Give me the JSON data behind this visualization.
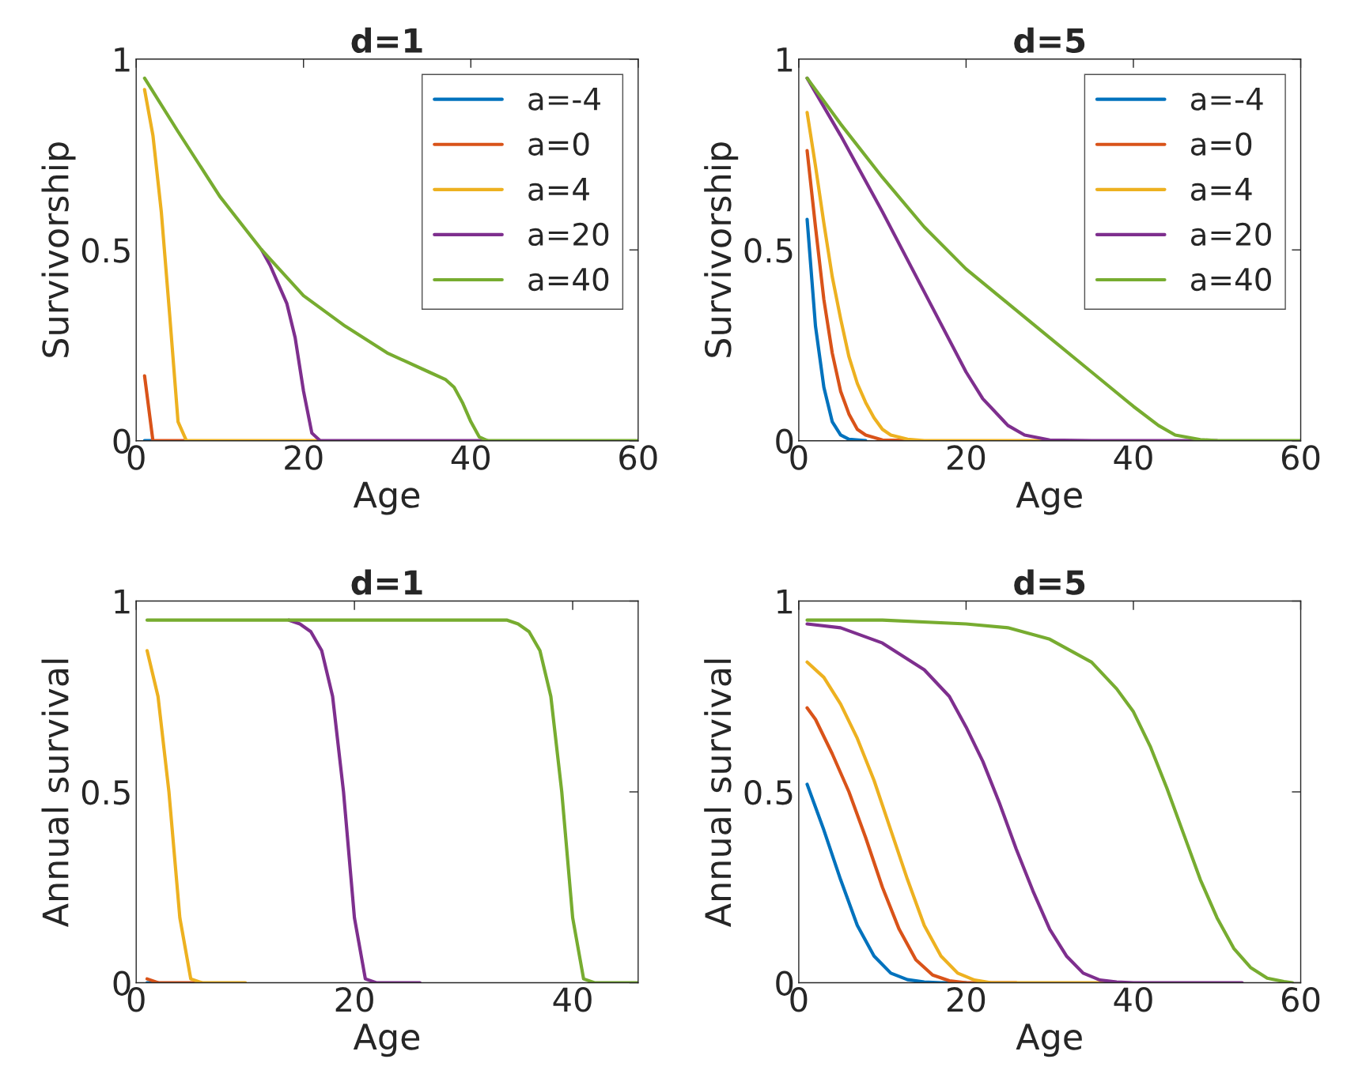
{
  "chart_data": [
    {
      "type": "line",
      "title": "d=1",
      "xlabel": "Age",
      "ylabel": "Survivorship",
      "xlim": [
        0,
        60
      ],
      "ylim": [
        0,
        1
      ],
      "xticks": [
        0,
        20,
        40,
        60
      ],
      "yticks": [
        0,
        0.5,
        1
      ],
      "grid": false,
      "legend": "top right",
      "line_style": "solid",
      "marker": "none",
      "series": [
        {
          "name": "a=-4",
          "color": "#0072bd",
          "x": [
            1,
            2
          ],
          "values": [
            0,
            0
          ]
        },
        {
          "name": "a=0",
          "color": "#d95319",
          "x": [
            1,
            2,
            6
          ],
          "values": [
            0.17,
            0,
            0
          ]
        },
        {
          "name": "a=4",
          "color": "#edb120",
          "x": [
            1,
            2,
            3,
            4,
            5,
            6,
            22
          ],
          "values": [
            0.92,
            0.8,
            0.6,
            0.33,
            0.05,
            0,
            0
          ]
        },
        {
          "name": "a=20",
          "color": "#7e2f8e",
          "x": [
            15,
            16,
            17,
            18,
            19,
            20,
            21,
            22,
            42
          ],
          "values": [
            0.5,
            0.46,
            0.41,
            0.36,
            0.27,
            0.13,
            0.02,
            0,
            0
          ]
        },
        {
          "name": "a=40",
          "color": "#77ac30",
          "x": [
            1,
            5,
            10,
            15,
            20,
            25,
            30,
            35,
            37,
            38,
            39,
            40,
            41,
            42,
            60
          ],
          "values": [
            0.95,
            0.81,
            0.64,
            0.5,
            0.38,
            0.3,
            0.23,
            0.18,
            0.16,
            0.14,
            0.1,
            0.05,
            0.01,
            0,
            0
          ]
        }
      ]
    },
    {
      "type": "line",
      "title": "d=5",
      "xlabel": "Age",
      "ylabel": "Survivorship",
      "xlim": [
        0,
        60
      ],
      "ylim": [
        0,
        1
      ],
      "xticks": [
        0,
        20,
        40,
        60
      ],
      "yticks": [
        0,
        0.5,
        1
      ],
      "grid": false,
      "legend": "top right",
      "line_style": "solid",
      "marker": "none",
      "series": [
        {
          "name": "a=-4",
          "color": "#0072bd",
          "x": [
            1,
            2,
            3,
            4,
            5,
            6,
            8
          ],
          "values": [
            0.58,
            0.3,
            0.14,
            0.05,
            0.015,
            0.004,
            0
          ]
        },
        {
          "name": "a=0",
          "color": "#d95319",
          "x": [
            1,
            2,
            3,
            4,
            5,
            6,
            7,
            8,
            10,
            14
          ],
          "values": [
            0.76,
            0.56,
            0.37,
            0.23,
            0.13,
            0.07,
            0.03,
            0.015,
            0.002,
            0
          ]
        },
        {
          "name": "a=4",
          "color": "#edb120",
          "x": [
            1,
            2,
            3,
            4,
            5,
            6,
            7,
            8,
            9,
            10,
            11,
            13,
            15,
            30
          ],
          "values": [
            0.86,
            0.72,
            0.57,
            0.43,
            0.32,
            0.22,
            0.15,
            0.1,
            0.06,
            0.03,
            0.015,
            0.004,
            0,
            0
          ]
        },
        {
          "name": "a=20",
          "color": "#7e2f8e",
          "x": [
            1,
            5,
            10,
            15,
            20,
            22,
            25,
            27,
            30,
            35,
            50
          ],
          "values": [
            0.95,
            0.8,
            0.6,
            0.39,
            0.18,
            0.11,
            0.04,
            0.015,
            0.002,
            0,
            0
          ]
        },
        {
          "name": "a=40",
          "color": "#77ac30",
          "x": [
            1,
            5,
            10,
            15,
            20,
            25,
            30,
            35,
            40,
            43,
            45,
            48,
            50,
            60
          ],
          "values": [
            0.95,
            0.83,
            0.69,
            0.56,
            0.45,
            0.36,
            0.27,
            0.18,
            0.09,
            0.04,
            0.015,
            0.003,
            0,
            0
          ]
        }
      ]
    },
    {
      "type": "line",
      "title": "d=1",
      "xlabel": "Age",
      "ylabel": "Annual survival",
      "xlim": [
        0,
        46
      ],
      "ylim": [
        0,
        1
      ],
      "xticks": [
        0,
        20,
        40
      ],
      "yticks": [
        0,
        0.5,
        1
      ],
      "grid": false,
      "line_style": "solid",
      "marker": "none",
      "series": [
        {
          "color": "#0072bd",
          "x": [
            1,
            2
          ],
          "values": [
            0,
            0
          ]
        },
        {
          "color": "#d95319",
          "x": [
            1,
            2,
            6
          ],
          "values": [
            0.01,
            0,
            0
          ]
        },
        {
          "color": "#edb120",
          "x": [
            1,
            2,
            3,
            4,
            5,
            6,
            10
          ],
          "values": [
            0.87,
            0.75,
            0.5,
            0.17,
            0.01,
            0,
            0
          ]
        },
        {
          "color": "#7e2f8e",
          "x": [
            14,
            15,
            16,
            17,
            18,
            19,
            20,
            21,
            22,
            26
          ],
          "values": [
            0.95,
            0.94,
            0.92,
            0.87,
            0.75,
            0.5,
            0.17,
            0.01,
            0,
            0
          ]
        },
        {
          "color": "#77ac30",
          "x": [
            1,
            34,
            35,
            36,
            37,
            38,
            39,
            40,
            41,
            42,
            46
          ],
          "values": [
            0.95,
            0.95,
            0.94,
            0.92,
            0.87,
            0.75,
            0.5,
            0.17,
            0.01,
            0,
            0
          ]
        }
      ]
    },
    {
      "type": "line",
      "title": "d=5",
      "xlabel": "Age",
      "ylabel": "Annual survival",
      "xlim": [
        0,
        60
      ],
      "ylim": [
        0,
        1
      ],
      "xticks": [
        0,
        20,
        40,
        60
      ],
      "yticks": [
        0,
        0.5,
        1
      ],
      "grid": false,
      "line_style": "solid",
      "marker": "none",
      "series": [
        {
          "color": "#0072bd",
          "x": [
            1,
            3,
            5,
            7,
            9,
            11,
            13,
            15,
            17,
            20
          ],
          "values": [
            0.52,
            0.4,
            0.27,
            0.15,
            0.07,
            0.025,
            0.008,
            0.002,
            0,
            0
          ]
        },
        {
          "color": "#d95319",
          "x": [
            1,
            2,
            4,
            6,
            8,
            10,
            12,
            14,
            16,
            18,
            20,
            26
          ],
          "values": [
            0.72,
            0.69,
            0.6,
            0.5,
            0.38,
            0.25,
            0.14,
            0.06,
            0.02,
            0.005,
            0,
            0
          ]
        },
        {
          "color": "#edb120",
          "x": [
            1,
            3,
            5,
            7,
            9,
            11,
            13,
            15,
            17,
            19,
            21,
            23,
            37
          ],
          "values": [
            0.84,
            0.8,
            0.73,
            0.64,
            0.53,
            0.4,
            0.27,
            0.15,
            0.07,
            0.025,
            0.007,
            0,
            0
          ]
        },
        {
          "color": "#7e2f8e",
          "x": [
            1,
            5,
            10,
            15,
            18,
            20,
            22,
            24,
            26,
            28,
            30,
            32,
            34,
            36,
            38,
            40,
            53
          ],
          "values": [
            0.94,
            0.93,
            0.89,
            0.82,
            0.75,
            0.67,
            0.58,
            0.47,
            0.35,
            0.24,
            0.14,
            0.07,
            0.025,
            0.007,
            0.002,
            0,
            0
          ]
        },
        {
          "color": "#77ac30",
          "x": [
            1,
            10,
            20,
            25,
            30,
            35,
            38,
            40,
            42,
            44,
            46,
            48,
            50,
            52,
            54,
            56,
            58,
            59
          ],
          "values": [
            0.95,
            0.95,
            0.94,
            0.93,
            0.9,
            0.84,
            0.77,
            0.71,
            0.62,
            0.51,
            0.39,
            0.27,
            0.17,
            0.09,
            0.04,
            0.012,
            0.003,
            0
          ]
        }
      ]
    }
  ]
}
